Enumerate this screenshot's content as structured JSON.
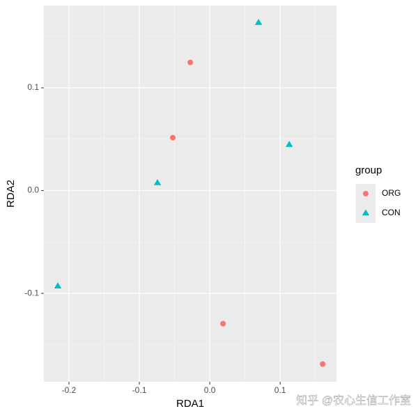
{
  "chart_data": {
    "type": "scatter",
    "x_label": "RDA1",
    "y_label": "RDA2",
    "xlim": [
      -0.2356,
      0.18
    ],
    "ylim": [
      -0.186,
      0.18
    ],
    "xticks": [
      -0.2,
      -0.1,
      {
        "value": 0,
        "label": "0.0"
      },
      0.1
    ],
    "yticks": [
      -0.1,
      {
        "value": 0,
        "label": "0.0"
      },
      0.1
    ],
    "grid": true,
    "minor_grid": true,
    "legend_title": "group",
    "legend_position": "right",
    "series": [
      {
        "name": "ORG",
        "color": "#F8766D",
        "shape": "circle",
        "x": [
          -0.0277,
          -0.0525,
          0.0188,
          0.1604
        ],
        "values": [
          0.1247,
          0.0515,
          -0.1295,
          -0.1688
        ]
      },
      {
        "name": "CON",
        "color": "#00BFC4",
        "shape": "triangle",
        "x": [
          0.0693,
          0.1129,
          -0.0743,
          -0.2158
        ],
        "values": [
          0.1634,
          0.0447,
          0.0075,
          -0.0929
        ]
      }
    ],
    "watermark": "知乎 @农心生信工作室"
  }
}
